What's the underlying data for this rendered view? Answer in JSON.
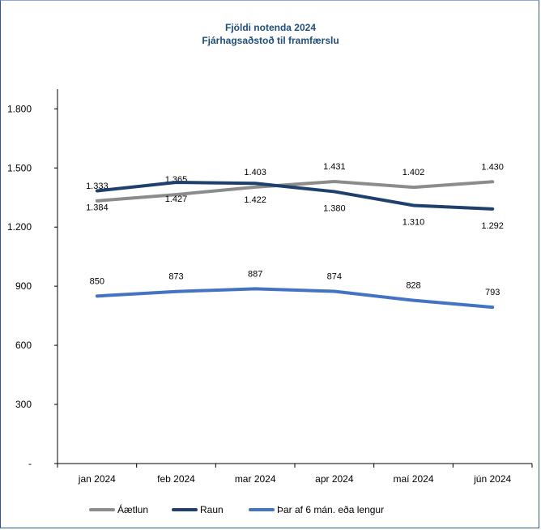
{
  "chart_data": {
    "type": "line",
    "title": "Fjöldi notenda 2024",
    "subtitle": "Fjárhagsaðstoð til framfærslu",
    "categories": [
      "jan 2024",
      "feb 2024",
      "mar 2024",
      "apr 2024",
      "maí 2024",
      "jún 2024"
    ],
    "series": [
      {
        "name": "Áætlun",
        "color": "#8c8c8c",
        "values": [
          1333,
          1365,
          1403,
          1431,
          1402,
          1430
        ],
        "labels": [
          "1.333",
          "1.365",
          "1.403",
          "1.431",
          "1.402",
          "1.430"
        ],
        "label_position": [
          "above",
          "above",
          "above",
          "above",
          "above",
          "above"
        ]
      },
      {
        "name": "Raun",
        "color": "#1f3f6e",
        "values": [
          1384,
          1427,
          1422,
          1380,
          1310,
          1292
        ],
        "labels": [
          "1.384",
          "1.427",
          "1.422",
          "1.380",
          "1.310",
          "1.292"
        ],
        "label_position": [
          "below",
          "below",
          "below",
          "below",
          "below",
          "below"
        ]
      },
      {
        "name": "Þar af 6 mán. eða lengur",
        "color": "#4472c4",
        "values": [
          850,
          873,
          887,
          874,
          828,
          793
        ],
        "labels": [
          "850",
          "873",
          "887",
          "874",
          "828",
          "793"
        ],
        "label_position": [
          "above",
          "above",
          "above",
          "above",
          "above",
          "above"
        ]
      }
    ],
    "yticks": [
      0,
      300,
      600,
      900,
      1200,
      1500,
      1800
    ],
    "ytick_labels": [
      "-",
      "300",
      "600",
      "900",
      "1.200",
      "1.500",
      "1.800"
    ],
    "ylim": [
      0,
      1900
    ],
    "grid": false,
    "legend": "bottom"
  }
}
